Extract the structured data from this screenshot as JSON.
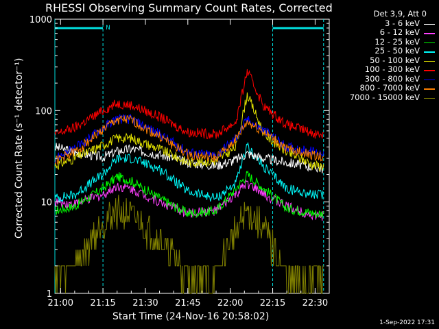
{
  "chart_data": {
    "type": "line",
    "title": "RHESSI Observing Summary Count Rates, Corrected",
    "xlabel": "Start Time (24-Nov-16 20:58:02)",
    "ylabel": "Corrected Count Rate (s⁻¹ detector⁻¹)",
    "y_scale": "log",
    "ylim": [
      1,
      1000
    ],
    "xlim": [
      "20:58",
      "22:35"
    ],
    "x_ticks": [
      "21:00",
      "21:15",
      "21:30",
      "21:45",
      "22:00",
      "22:15",
      "22:30"
    ],
    "y_ticks": [
      "1",
      "10",
      "100",
      "1000"
    ],
    "legend_header": "Det 3,9, Att 0",
    "legend_placement": "right",
    "grid": false,
    "annotations": [
      "N"
    ],
    "night_intervals": [
      [
        "20:58",
        "21:15"
      ],
      [
        "22:15",
        "22:33"
      ]
    ],
    "timestamp": "1-Sep-2022 17:31",
    "series": [
      {
        "name": "3 - 6 keV",
        "color": "#ffffff",
        "x": [
          "20:58",
          "21:05",
          "21:15",
          "21:20",
          "21:25",
          "21:35",
          "21:45",
          "21:55",
          "22:02",
          "22:06",
          "22:12",
          "22:20",
          "22:30",
          "22:33"
        ],
        "values": [
          40,
          35,
          31,
          36,
          38,
          33,
          27,
          25,
          29,
          34,
          30,
          27,
          24,
          23
        ]
      },
      {
        "name": "6 - 12 keV",
        "color": "#ff40ff",
        "x": [
          "20:58",
          "21:05",
          "21:15",
          "21:20",
          "21:25",
          "21:35",
          "21:45",
          "21:55",
          "22:02",
          "22:06",
          "22:12",
          "22:20",
          "22:30",
          "22:33"
        ],
        "values": [
          10,
          9.5,
          12,
          15,
          14,
          10,
          7.5,
          8,
          12,
          16,
          12,
          9,
          7,
          7
        ]
      },
      {
        "name": "12 - 25 keV",
        "color": "#00ff00",
        "x": [
          "20:58",
          "21:05",
          "21:15",
          "21:20",
          "21:25",
          "21:35",
          "21:45",
          "21:55",
          "22:02",
          "22:06",
          "22:12",
          "22:20",
          "22:30",
          "22:33"
        ],
        "values": [
          8,
          9,
          14,
          19,
          17,
          11,
          7.5,
          8,
          14,
          20,
          14,
          8.5,
          7.5,
          7.5
        ]
      },
      {
        "name": "25 - 50 keV",
        "color": "#00ffff",
        "x": [
          "20:58",
          "21:05",
          "21:15",
          "21:20",
          "21:25",
          "21:35",
          "21:45",
          "21:55",
          "22:02",
          "22:06",
          "22:12",
          "22:20",
          "22:30",
          "22:33"
        ],
        "values": [
          11,
          12,
          20,
          30,
          30,
          23,
          13,
          11,
          16,
          40,
          24,
          14,
          12,
          12
        ]
      },
      {
        "name": "50 - 100 keV",
        "color": "#e0e000",
        "x": [
          "20:58",
          "21:05",
          "21:15",
          "21:20",
          "21:25",
          "21:35",
          "21:45",
          "21:55",
          "22:02",
          "22:06",
          "22:12",
          "22:20",
          "22:30",
          "22:33"
        ],
        "values": [
          25,
          30,
          42,
          50,
          50,
          38,
          27,
          28,
          40,
          150,
          55,
          35,
          25,
          25
        ]
      },
      {
        "name": "100 - 300 keV",
        "color": "#ff0000",
        "x": [
          "20:58",
          "21:05",
          "21:15",
          "21:20",
          "21:25",
          "21:35",
          "21:45",
          "21:55",
          "22:02",
          "22:06",
          "22:12",
          "22:20",
          "22:30",
          "22:33"
        ],
        "values": [
          55,
          65,
          100,
          120,
          115,
          85,
          58,
          55,
          75,
          270,
          110,
          70,
          56,
          55
        ]
      },
      {
        "name": "300 - 800 keV",
        "color": "#0000ff",
        "x": [
          "20:58",
          "21:05",
          "21:15",
          "21:20",
          "21:25",
          "21:35",
          "21:45",
          "21:55",
          "22:02",
          "22:06",
          "22:12",
          "22:20",
          "22:30",
          "22:33"
        ],
        "values": [
          30,
          38,
          65,
          82,
          80,
          55,
          35,
          32,
          50,
          80,
          60,
          40,
          35,
          35
        ]
      },
      {
        "name": "800 - 7000 keV",
        "color": "#ff8000",
        "x": [
          "20:58",
          "21:05",
          "21:15",
          "21:20",
          "21:25",
          "21:35",
          "21:45",
          "21:55",
          "22:02",
          "22:06",
          "22:12",
          "22:20",
          "22:30",
          "22:33"
        ],
        "values": [
          28,
          35,
          62,
          80,
          78,
          52,
          33,
          30,
          48,
          75,
          58,
          38,
          32,
          31
        ]
      },
      {
        "name": "7000 - 15000 keV",
        "color": "#808000",
        "x": [
          "20:58",
          "21:05",
          "21:15",
          "21:20",
          "21:25",
          "21:35",
          "21:45",
          "21:55",
          "22:02",
          "22:06",
          "22:12",
          "22:20",
          "22:30",
          "22:33"
        ],
        "values": [
          1.5,
          2,
          6,
          8,
          7,
          4,
          1.5,
          1.5,
          5,
          8,
          5,
          1.5,
          1.5,
          1.5
        ]
      }
    ]
  }
}
